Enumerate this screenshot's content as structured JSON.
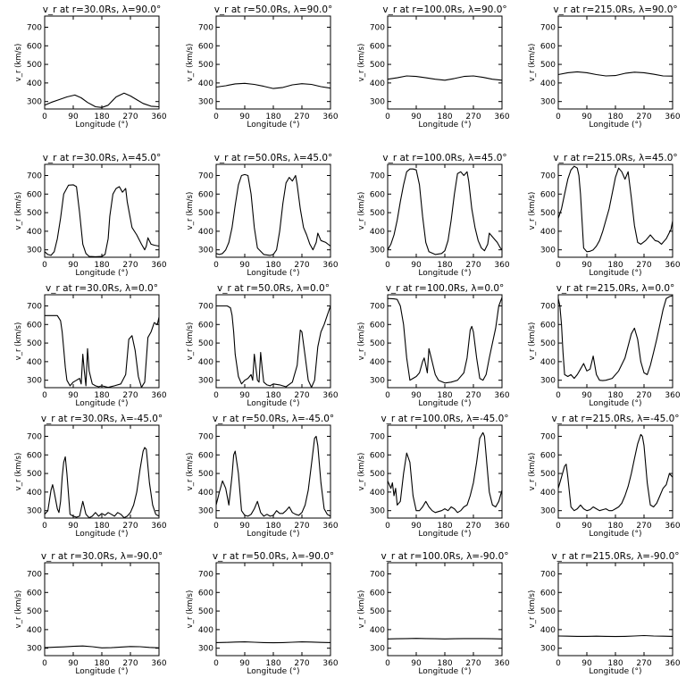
{
  "chart_data": {
    "type": "line",
    "rows": 5,
    "cols": 4,
    "xlabel": "Longitude (°)",
    "ylabel": "v_r (km/s)",
    "xlim": [
      0,
      360
    ],
    "ylim": [
      260,
      760
    ],
    "xticks": [
      0,
      90,
      180,
      270,
      360
    ],
    "yticks": [
      300,
      400,
      500,
      600,
      700
    ],
    "panels": [
      {
        "title": "v_r at r=30.0Rs, λ=90.0°",
        "x": [
          0,
          20,
          45,
          70,
          95,
          115,
          135,
          160,
          180,
          200,
          225,
          250,
          270,
          290,
          310,
          335,
          360
        ],
        "y": [
          280,
          295,
          310,
          325,
          335,
          320,
          295,
          272,
          268,
          280,
          325,
          345,
          330,
          310,
          290,
          275,
          272
        ]
      },
      {
        "title": "v_r at r=50.0Rs, λ=90.0°",
        "x": [
          0,
          30,
          60,
          90,
          120,
          150,
          180,
          210,
          240,
          270,
          300,
          330,
          360
        ],
        "y": [
          378,
          385,
          395,
          398,
          392,
          382,
          370,
          376,
          390,
          396,
          392,
          380,
          372
        ]
      },
      {
        "title": "v_r at r=100.0Rs, λ=90.0°",
        "x": [
          0,
          30,
          60,
          90,
          120,
          150,
          180,
          210,
          240,
          270,
          300,
          330,
          360
        ],
        "y": [
          420,
          428,
          438,
          435,
          428,
          420,
          415,
          424,
          435,
          438,
          430,
          420,
          415
        ]
      },
      {
        "title": "v_r at r=215.0Rs, λ=90.0°",
        "x": [
          0,
          30,
          60,
          90,
          120,
          150,
          180,
          210,
          240,
          270,
          300,
          330,
          360
        ],
        "y": [
          445,
          455,
          460,
          455,
          445,
          438,
          440,
          452,
          458,
          455,
          447,
          438,
          437
        ]
      },
      {
        "title": "v_r at r=30.0Rs, λ=45.0°",
        "x": [
          0,
          10,
          20,
          30,
          40,
          50,
          60,
          75,
          90,
          100,
          110,
          120,
          130,
          140,
          160,
          180,
          190,
          200,
          205,
          215,
          225,
          235,
          245,
          255,
          260,
          275,
          290,
          305,
          315,
          320,
          325,
          335,
          345,
          360
        ],
        "y": [
          290,
          275,
          270,
          290,
          360,
          470,
          600,
          648,
          650,
          640,
          500,
          330,
          280,
          265,
          263,
          265,
          275,
          360,
          480,
          600,
          630,
          640,
          610,
          630,
          560,
          420,
          380,
          330,
          300,
          320,
          365,
          330,
          325,
          320
        ]
      },
      {
        "title": "v_r at r=50.0Rs, λ=45.0°",
        "x": [
          0,
          10,
          20,
          30,
          40,
          50,
          60,
          70,
          80,
          90,
          100,
          110,
          120,
          130,
          150,
          170,
          180,
          190,
          200,
          210,
          220,
          230,
          240,
          250,
          255,
          265,
          275,
          285,
          295,
          305,
          315,
          320,
          330,
          345,
          360
        ],
        "y": [
          280,
          275,
          280,
          300,
          340,
          420,
          540,
          650,
          700,
          705,
          700,
          600,
          420,
          310,
          275,
          270,
          275,
          300,
          400,
          550,
          660,
          690,
          670,
          700,
          650,
          520,
          420,
          380,
          330,
          300,
          340,
          390,
          350,
          340,
          320
        ]
      },
      {
        "title": "v_r at r=100.0Rs, λ=45.0°",
        "x": [
          0,
          10,
          20,
          30,
          40,
          50,
          60,
          70,
          80,
          90,
          100,
          110,
          120,
          130,
          150,
          170,
          180,
          190,
          200,
          210,
          220,
          230,
          240,
          250,
          255,
          265,
          275,
          285,
          295,
          305,
          315,
          320,
          330,
          345,
          355,
          360
        ],
        "y": [
          300,
          330,
          380,
          460,
          560,
          650,
          720,
          735,
          735,
          730,
          650,
          480,
          340,
          290,
          275,
          280,
          295,
          350,
          460,
          600,
          710,
          720,
          700,
          720,
          670,
          520,
          420,
          350,
          310,
          295,
          330,
          390,
          370,
          340,
          310,
          300
        ]
      },
      {
        "title": "v_r at r=215.0Rs, λ=45.0°",
        "x": [
          0,
          10,
          20,
          30,
          40,
          50,
          60,
          65,
          70,
          75,
          80,
          90,
          100,
          110,
          120,
          130,
          140,
          160,
          180,
          190,
          200,
          210,
          220,
          230,
          240,
          250,
          260,
          275,
          290,
          305,
          315,
          325,
          340,
          355,
          360
        ],
        "y": [
          470,
          520,
          600,
          680,
          730,
          750,
          740,
          700,
          600,
          450,
          310,
          290,
          292,
          300,
          320,
          350,
          400,
          520,
          690,
          740,
          720,
          680,
          720,
          580,
          430,
          340,
          330,
          350,
          380,
          350,
          345,
          330,
          360,
          410,
          455
        ]
      },
      {
        "title": "v_r at r=30.0Rs, λ=0.0°",
        "x": [
          0,
          20,
          40,
          50,
          55,
          60,
          65,
          70,
          80,
          90,
          100,
          110,
          115,
          120,
          125,
          130,
          135,
          140,
          150,
          160,
          170,
          180,
          200,
          220,
          240,
          255,
          265,
          275,
          285,
          295,
          305,
          315,
          325,
          335,
          345,
          355,
          360
        ],
        "y": [
          648,
          648,
          648,
          620,
          560,
          470,
          370,
          300,
          270,
          290,
          300,
          310,
          280,
          440,
          350,
          270,
          470,
          350,
          280,
          270,
          265,
          270,
          262,
          270,
          280,
          330,
          520,
          540,
          460,
          320,
          262,
          290,
          530,
          560,
          610,
          600,
          640
        ]
      },
      {
        "title": "v_r at r=50.0Rs, λ=0.0°",
        "x": [
          0,
          20,
          35,
          45,
          50,
          55,
          60,
          70,
          80,
          90,
          100,
          110,
          115,
          120,
          130,
          135,
          140,
          145,
          150,
          160,
          170,
          180,
          200,
          220,
          240,
          255,
          265,
          270,
          280,
          290,
          300,
          310,
          320,
          330,
          340,
          350,
          360
        ],
        "y": [
          700,
          700,
          700,
          690,
          650,
          560,
          440,
          320,
          280,
          300,
          310,
          330,
          300,
          440,
          300,
          290,
          450,
          360,
          290,
          275,
          270,
          280,
          275,
          265,
          290,
          380,
          570,
          560,
          430,
          300,
          262,
          300,
          480,
          560,
          600,
          650,
          700
        ]
      },
      {
        "title": "v_r at r=100.0Rs, λ=0.0°",
        "x": [
          0,
          20,
          30,
          40,
          50,
          60,
          70,
          80,
          90,
          100,
          110,
          115,
          120,
          125,
          130,
          140,
          150,
          160,
          180,
          200,
          220,
          240,
          250,
          260,
          265,
          270,
          280,
          290,
          300,
          310,
          320,
          330,
          340,
          350,
          360
        ],
        "y": [
          740,
          738,
          735,
          700,
          600,
          420,
          300,
          310,
          320,
          340,
          400,
          420,
          380,
          340,
          470,
          400,
          330,
          300,
          285,
          290,
          300,
          340,
          420,
          570,
          590,
          560,
          420,
          310,
          300,
          330,
          420,
          500,
          580,
          700,
          745
        ]
      },
      {
        "title": "v_r at r=215.0Rs, λ=0.0°",
        "x": [
          0,
          5,
          10,
          15,
          20,
          30,
          40,
          50,
          60,
          70,
          80,
          90,
          100,
          110,
          120,
          130,
          140,
          150,
          170,
          190,
          210,
          230,
          240,
          250,
          260,
          270,
          280,
          290,
          300,
          310,
          320,
          330,
          340,
          350,
          360
        ],
        "y": [
          740,
          700,
          600,
          450,
          330,
          320,
          330,
          310,
          330,
          360,
          390,
          350,
          360,
          430,
          330,
          300,
          298,
          300,
          310,
          350,
          420,
          550,
          580,
          520,
          400,
          340,
          330,
          380,
          450,
          520,
          600,
          680,
          740,
          750,
          755
        ]
      },
      {
        "title": "v_r at r=30.0Rs, λ=-45.0°",
        "x": [
          0,
          10,
          20,
          25,
          30,
          40,
          45,
          50,
          55,
          60,
          65,
          70,
          80,
          90,
          100,
          110,
          120,
          130,
          140,
          150,
          160,
          170,
          180,
          190,
          200,
          210,
          220,
          230,
          240,
          250,
          260,
          270,
          280,
          290,
          300,
          310,
          315,
          320,
          330,
          340,
          350,
          360
        ],
        "y": [
          280,
          300,
          410,
          440,
          400,
          310,
          290,
          350,
          480,
          560,
          590,
          500,
          280,
          270,
          265,
          270,
          350,
          280,
          262,
          270,
          290,
          270,
          285,
          275,
          290,
          280,
          270,
          290,
          280,
          262,
          270,
          290,
          330,
          400,
          520,
          620,
          640,
          630,
          450,
          330,
          280,
          270
        ]
      },
      {
        "title": "v_r at r=50.0Rs, λ=-45.0°",
        "x": [
          0,
          10,
          20,
          30,
          40,
          50,
          55,
          60,
          70,
          80,
          90,
          100,
          110,
          120,
          130,
          140,
          150,
          160,
          170,
          180,
          190,
          200,
          210,
          220,
          230,
          240,
          250,
          260,
          270,
          280,
          290,
          300,
          310,
          315,
          320,
          330,
          340,
          350,
          360
        ],
        "y": [
          330,
          400,
          460,
          420,
          330,
          490,
          600,
          620,
          500,
          300,
          275,
          270,
          280,
          310,
          350,
          290,
          270,
          280,
          270,
          275,
          300,
          285,
          285,
          300,
          320,
          290,
          280,
          275,
          290,
          330,
          410,
          550,
          690,
          700,
          650,
          450,
          310,
          280,
          270
        ]
      },
      {
        "title": "v_r at r=100.0Rs, λ=-45.0°",
        "x": [
          0,
          10,
          15,
          20,
          25,
          30,
          40,
          50,
          60,
          70,
          80,
          90,
          100,
          110,
          120,
          130,
          140,
          150,
          160,
          170,
          180,
          190,
          200,
          210,
          220,
          230,
          240,
          250,
          260,
          270,
          280,
          290,
          300,
          305,
          310,
          320,
          330,
          340,
          350,
          360
        ],
        "y": [
          460,
          420,
          450,
          380,
          420,
          330,
          350,
          500,
          610,
          560,
          380,
          300,
          300,
          320,
          350,
          320,
          300,
          290,
          295,
          300,
          310,
          300,
          320,
          310,
          290,
          300,
          320,
          330,
          380,
          450,
          560,
          690,
          720,
          700,
          600,
          400,
          330,
          320,
          350,
          410
        ]
      },
      {
        "title": "v_r at r=215.0Rs, λ=-45.0°",
        "x": [
          0,
          10,
          20,
          25,
          30,
          40,
          50,
          60,
          70,
          80,
          90,
          100,
          110,
          120,
          130,
          140,
          150,
          160,
          170,
          180,
          190,
          200,
          210,
          220,
          230,
          240,
          250,
          260,
          265,
          270,
          280,
          290,
          300,
          310,
          320,
          330,
          340,
          350,
          360
        ],
        "y": [
          420,
          480,
          540,
          550,
          480,
          320,
          300,
          310,
          330,
          310,
          300,
          305,
          320,
          310,
          300,
          305,
          310,
          300,
          300,
          310,
          320,
          340,
          380,
          430,
          500,
          580,
          660,
          710,
          700,
          650,
          450,
          330,
          320,
          340,
          380,
          420,
          440,
          500,
          480
        ]
      },
      {
        "title": "v_r at r=30.0Rs, λ=-90.0°",
        "x": [
          0,
          30,
          60,
          90,
          120,
          150,
          180,
          210,
          240,
          270,
          300,
          330,
          360
        ],
        "y": [
          303,
          305,
          307,
          310,
          312,
          308,
          302,
          303,
          306,
          309,
          308,
          304,
          302
        ]
      },
      {
        "title": "v_r at r=50.0Rs, λ=-90.0°",
        "x": [
          0,
          30,
          60,
          90,
          120,
          150,
          180,
          210,
          240,
          270,
          300,
          330,
          360
        ],
        "y": [
          330,
          331,
          333,
          334,
          332,
          330,
          329,
          330,
          332,
          334,
          333,
          331,
          330
        ]
      },
      {
        "title": "v_r at r=100.0Rs, λ=-90.0°",
        "x": [
          0,
          30,
          60,
          90,
          120,
          150,
          180,
          210,
          240,
          270,
          300,
          330,
          360
        ],
        "y": [
          350,
          351,
          352,
          353,
          352,
          351,
          350,
          351,
          352,
          352,
          352,
          351,
          350
        ]
      },
      {
        "title": "v_r at r=215.0Rs, λ=-90.0°",
        "x": [
          0,
          30,
          60,
          90,
          120,
          150,
          180,
          210,
          240,
          270,
          300,
          330,
          360
        ],
        "y": [
          366,
          365,
          364,
          364,
          365,
          364,
          363,
          364,
          366,
          368,
          366,
          365,
          364
        ]
      }
    ]
  }
}
